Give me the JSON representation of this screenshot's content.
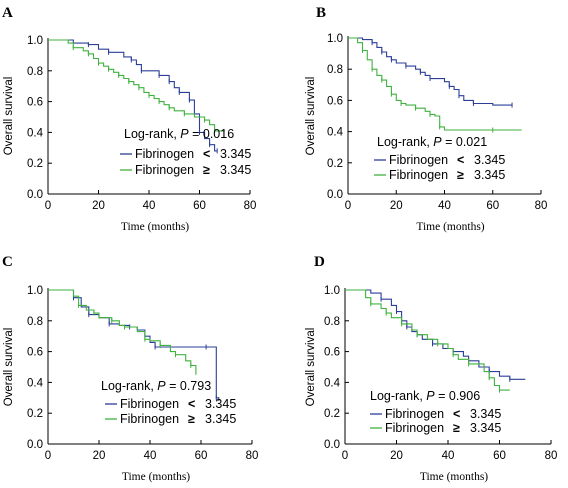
{
  "colors": {
    "low": "#2b3f98",
    "high": "#3fb23f",
    "axis": "#000000"
  },
  "chart_data": [
    {
      "type": "line",
      "panel": "A",
      "xlabel": "Time (months)",
      "ylabel": "Overall survival",
      "xlim": [
        0,
        80
      ],
      "ylim": [
        0.0,
        1.0
      ],
      "x_ticks": [
        "0",
        "20",
        "40",
        "60",
        "80"
      ],
      "y_ticks": [
        "0.0",
        "0.2",
        "0.4",
        "0.6",
        "0.8",
        "1.0"
      ],
      "stat_prefix": "Log-rank, ",
      "stat_p": "P",
      "stat_value": " = 0.016",
      "legend": [
        {
          "name": "Fibrinogen",
          "sign": "<",
          "threshold": "3.345",
          "color_key": "low"
        },
        {
          "name": "Fibrinogen",
          "sign": "≥",
          "threshold": "3.345",
          "color_key": "high"
        }
      ],
      "series": [
        {
          "color_key": "low",
          "points": [
            [
              0,
              1.0
            ],
            [
              10,
              0.98
            ],
            [
              16,
              0.97
            ],
            [
              20,
              0.94
            ],
            [
              24,
              0.92
            ],
            [
              30,
              0.89
            ],
            [
              33,
              0.87
            ],
            [
              35,
              0.84
            ],
            [
              37,
              0.8
            ],
            [
              42,
              0.8
            ],
            [
              44,
              0.77
            ],
            [
              46,
              0.77
            ],
            [
              48,
              0.73
            ],
            [
              50,
              0.69
            ],
            [
              52,
              0.66
            ],
            [
              54,
              0.66
            ],
            [
              56,
              0.61
            ],
            [
              58,
              0.52
            ],
            [
              60,
              0.4
            ],
            [
              62,
              0.36
            ],
            [
              64,
              0.32
            ],
            [
              66,
              0.28
            ],
            [
              67,
              0.28
            ]
          ]
        },
        {
          "color_key": "high",
          "points": [
            [
              0,
              1.0
            ],
            [
              8,
              0.98
            ],
            [
              10,
              0.95
            ],
            [
              14,
              0.93
            ],
            [
              16,
              0.91
            ],
            [
              18,
              0.88
            ],
            [
              20,
              0.85
            ],
            [
              22,
              0.83
            ],
            [
              24,
              0.81
            ],
            [
              26,
              0.79
            ],
            [
              28,
              0.77
            ],
            [
              30,
              0.75
            ],
            [
              32,
              0.73
            ],
            [
              34,
              0.71
            ],
            [
              36,
              0.69
            ],
            [
              38,
              0.66
            ],
            [
              40,
              0.64
            ],
            [
              42,
              0.62
            ],
            [
              44,
              0.6
            ],
            [
              46,
              0.58
            ],
            [
              48,
              0.56
            ],
            [
              50,
              0.54
            ],
            [
              54,
              0.52
            ],
            [
              58,
              0.5
            ],
            [
              62,
              0.48
            ],
            [
              64,
              0.45
            ],
            [
              66,
              0.41
            ],
            [
              70,
              0.41
            ]
          ]
        }
      ]
    },
    {
      "type": "line",
      "panel": "B",
      "xlabel": "Time (months)",
      "ylabel": "Overall survival",
      "xlim": [
        0,
        80
      ],
      "ylim": [
        0.0,
        1.0
      ],
      "x_ticks": [
        "0",
        "20",
        "40",
        "60",
        "80"
      ],
      "y_ticks": [
        "0.0",
        "0.2",
        "0.4",
        "0.6",
        "0.8",
        "1.0"
      ],
      "stat_prefix": "Log-rank, ",
      "stat_p": "P",
      "stat_value": " = 0.021",
      "legend": [
        {
          "name": "Fibrinogen",
          "sign": "<",
          "threshold": "3.345",
          "color_key": "low"
        },
        {
          "name": "Fibrinogen",
          "sign": "≥",
          "threshold": "3.345",
          "color_key": "high"
        }
      ],
      "series": [
        {
          "color_key": "low",
          "points": [
            [
              0,
              1.0
            ],
            [
              6,
              0.99
            ],
            [
              10,
              0.97
            ],
            [
              12,
              0.94
            ],
            [
              14,
              0.91
            ],
            [
              16,
              0.88
            ],
            [
              18,
              0.86
            ],
            [
              20,
              0.84
            ],
            [
              24,
              0.82
            ],
            [
              28,
              0.8
            ],
            [
              30,
              0.78
            ],
            [
              32,
              0.76
            ],
            [
              34,
              0.74
            ],
            [
              40,
              0.72
            ],
            [
              42,
              0.69
            ],
            [
              44,
              0.67
            ],
            [
              46,
              0.63
            ],
            [
              48,
              0.6
            ],
            [
              52,
              0.58
            ],
            [
              60,
              0.57
            ],
            [
              68,
              0.57
            ]
          ]
        },
        {
          "color_key": "high",
          "points": [
            [
              0,
              1.0
            ],
            [
              4,
              0.97
            ],
            [
              6,
              0.92
            ],
            [
              8,
              0.86
            ],
            [
              10,
              0.8
            ],
            [
              12,
              0.76
            ],
            [
              14,
              0.73
            ],
            [
              16,
              0.69
            ],
            [
              18,
              0.64
            ],
            [
              20,
              0.6
            ],
            [
              22,
              0.58
            ],
            [
              24,
              0.57
            ],
            [
              28,
              0.55
            ],
            [
              32,
              0.53
            ],
            [
              34,
              0.51
            ],
            [
              36,
              0.5
            ],
            [
              38,
              0.43
            ],
            [
              40,
              0.41
            ],
            [
              60,
              0.41
            ],
            [
              72,
              0.41
            ]
          ]
        }
      ]
    },
    {
      "type": "line",
      "panel": "C",
      "xlabel": "Time (months)",
      "ylabel": "Overall survival",
      "xlim": [
        0,
        80
      ],
      "ylim": [
        0.0,
        1.0
      ],
      "x_ticks": [
        "0",
        "20",
        "40",
        "60",
        "80"
      ],
      "y_ticks": [
        "0.0",
        "0.2",
        "0.4",
        "0.6",
        "0.8",
        "1.0"
      ],
      "stat_prefix": "Log-rank, ",
      "stat_p": "P",
      "stat_value": " = 0.793",
      "legend": [
        {
          "name": "Fibrinogen",
          "sign": "<",
          "threshold": "3.345",
          "color_key": "low"
        },
        {
          "name": "Fibrinogen",
          "sign": "≥",
          "threshold": "3.345",
          "color_key": "high"
        }
      ],
      "series": [
        {
          "color_key": "low",
          "points": [
            [
              0,
              1.0
            ],
            [
              8,
              1.0
            ],
            [
              10,
              0.95
            ],
            [
              13,
              0.89
            ],
            [
              16,
              0.84
            ],
            [
              20,
              0.82
            ],
            [
              24,
              0.78
            ],
            [
              28,
              0.77
            ],
            [
              32,
              0.76
            ],
            [
              35,
              0.74
            ],
            [
              38,
              0.7
            ],
            [
              40,
              0.66
            ],
            [
              42,
              0.63
            ],
            [
              52,
              0.63
            ],
            [
              62,
              0.63
            ],
            [
              65,
              0.63
            ],
            [
              66,
              0.3
            ],
            [
              67,
              0.28
            ]
          ]
        },
        {
          "color_key": "high",
          "points": [
            [
              0,
              1.0
            ],
            [
              10,
              0.96
            ],
            [
              12,
              0.9
            ],
            [
              15,
              0.87
            ],
            [
              18,
              0.85
            ],
            [
              20,
              0.82
            ],
            [
              25,
              0.8
            ],
            [
              28,
              0.77
            ],
            [
              30,
              0.76
            ],
            [
              35,
              0.73
            ],
            [
              38,
              0.68
            ],
            [
              40,
              0.67
            ],
            [
              44,
              0.64
            ],
            [
              48,
              0.6
            ],
            [
              50,
              0.58
            ],
            [
              54,
              0.54
            ],
            [
              56,
              0.51
            ],
            [
              58,
              0.45
            ]
          ]
        }
      ]
    },
    {
      "type": "line",
      "panel": "D",
      "xlabel": "Time (months)",
      "ylabel": "Overall survival",
      "xlim": [
        0,
        80
      ],
      "ylim": [
        0.0,
        1.0
      ],
      "x_ticks": [
        "0",
        "20",
        "40",
        "60",
        "80"
      ],
      "y_ticks": [
        "0.0",
        "0.2",
        "0.4",
        "0.6",
        "0.8",
        "1.0"
      ],
      "stat_prefix": "Log-rank, ",
      "stat_p": "P",
      "stat_value": " = 0.906",
      "legend": [
        {
          "name": "Fibrinogen",
          "sign": "<",
          "threshold": "3.345",
          "color_key": "low"
        },
        {
          "name": "Fibrinogen",
          "sign": "≥",
          "threshold": "3.345",
          "color_key": "high"
        }
      ],
      "series": [
        {
          "color_key": "low",
          "points": [
            [
              0,
              1.0
            ],
            [
              10,
              0.98
            ],
            [
              14,
              0.94
            ],
            [
              18,
              0.9
            ],
            [
              20,
              0.86
            ],
            [
              22,
              0.8
            ],
            [
              24,
              0.76
            ],
            [
              26,
              0.73
            ],
            [
              28,
              0.71
            ],
            [
              30,
              0.68
            ],
            [
              34,
              0.65
            ],
            [
              38,
              0.62
            ],
            [
              42,
              0.6
            ],
            [
              46,
              0.57
            ],
            [
              48,
              0.54
            ],
            [
              52,
              0.5
            ],
            [
              56,
              0.47
            ],
            [
              60,
              0.44
            ],
            [
              64,
              0.42
            ],
            [
              70,
              0.42
            ]
          ]
        },
        {
          "color_key": "high",
          "points": [
            [
              0,
              1.0
            ],
            [
              8,
              0.95
            ],
            [
              10,
              0.91
            ],
            [
              14,
              0.88
            ],
            [
              16,
              0.85
            ],
            [
              18,
              0.82
            ],
            [
              22,
              0.78
            ],
            [
              26,
              0.74
            ],
            [
              28,
              0.71
            ],
            [
              32,
              0.68
            ],
            [
              36,
              0.65
            ],
            [
              40,
              0.62
            ],
            [
              42,
              0.58
            ],
            [
              44,
              0.55
            ],
            [
              48,
              0.52
            ],
            [
              54,
              0.47
            ],
            [
              56,
              0.43
            ],
            [
              58,
              0.38
            ],
            [
              60,
              0.35
            ],
            [
              64,
              0.35
            ]
          ]
        }
      ]
    }
  ]
}
